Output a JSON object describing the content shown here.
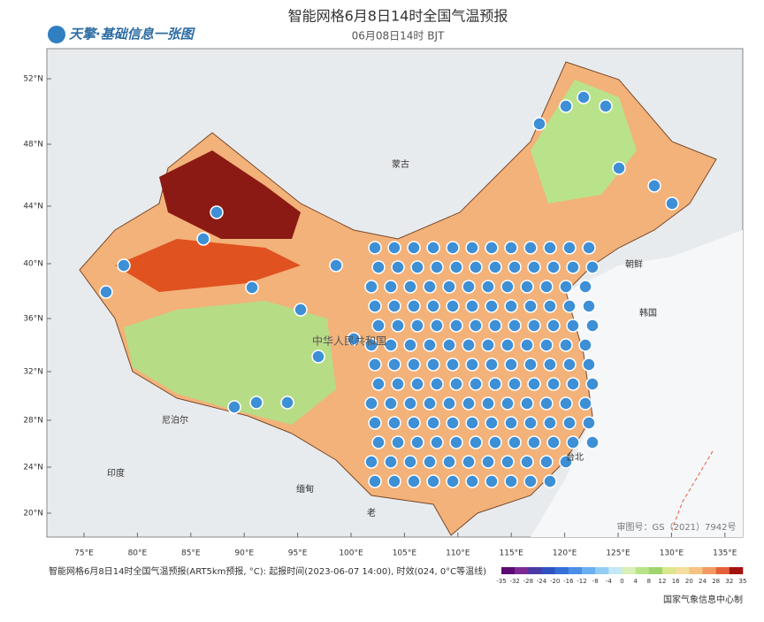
{
  "header": {
    "logo": "天擎·基础信息一张图",
    "title": "智能网格6月8日14时全国气温预报",
    "subtitle": "06月08日14时 BJT"
  },
  "map": {
    "lat_labels": [
      "52°N",
      "48°N",
      "44°N",
      "40°N",
      "36°N",
      "32°N",
      "28°N",
      "24°N",
      "20°N"
    ],
    "lon_labels": [
      "75°E",
      "80°E",
      "85°E",
      "90°E",
      "95°E",
      "100°E",
      "105°E",
      "110°E",
      "115°E",
      "120°E",
      "125°E",
      "130°E",
      "135°E"
    ],
    "places": [
      "蒙古",
      "中华人民共和国",
      "尼泊尔",
      "印度",
      "缅甸",
      "老",
      "朝鲜",
      "韩国",
      "台北"
    ],
    "approval": "审图号：GS（2021）7942号"
  },
  "legend": {
    "caption": "智能网格6月8日14时全国气温预报(ART5km预报, °C): 起报时间(2023-06-07 14:00), 时效(024, 0°C等温线)",
    "ticks": [
      -35,
      -32,
      -28,
      -24,
      -20,
      -16,
      -12,
      -8,
      -4,
      0,
      4,
      8,
      12,
      16,
      20,
      24,
      28,
      32,
      35
    ],
    "colors": [
      "#5b0a73",
      "#7d2a95",
      "#4a3aa6",
      "#2f52c2",
      "#3570d6",
      "#4b8ee6",
      "#6aaff0",
      "#94cdf4",
      "#c6e8f6",
      "#d9f0b6",
      "#b9e38a",
      "#9fd46e",
      "#dbe78d",
      "#f4df9e",
      "#f6c283",
      "#f29a66",
      "#e4603a",
      "#a3120f"
    ],
    "credit": "国家气象信息中心制"
  }
}
